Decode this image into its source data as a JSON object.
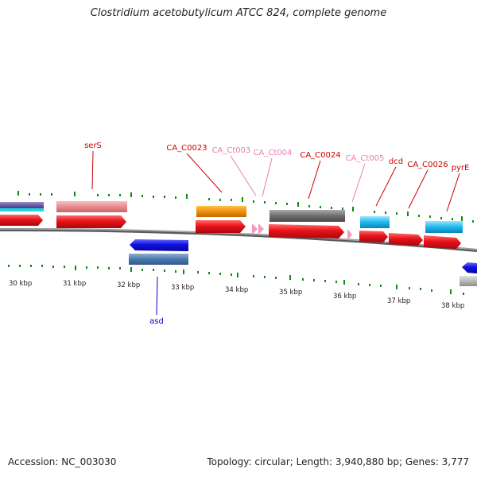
{
  "title": "Clostridium acetobutylicum ATCC 824, complete genome",
  "footer": {
    "accession": "Accession: NC_003030",
    "summary": "Topology: circular; Length: 3,940,880 bp; Genes: 3,777"
  },
  "colors": {
    "cds_red": "#e8121a",
    "rna_pink": "#f49ac1",
    "backbone": "#888888",
    "ticks": "#118811",
    "label_red": "#cc0000",
    "label_pink": "#e87fb0",
    "label_blue": "#0000cc"
  },
  "kbp_labels": [
    "30 kbp",
    "31 kbp",
    "32 kbp",
    "33 kbp",
    "34 kbp",
    "35 kbp",
    "36 kbp",
    "37 kbp",
    "38 kbp"
  ],
  "gene_labels": [
    {
      "text": "serS",
      "color": "#cc0000"
    },
    {
      "text": "CA_C0023",
      "color": "#cc0000"
    },
    {
      "text": "CA_Ct003",
      "color": "#e87fb0"
    },
    {
      "text": "CA_Ct004",
      "color": "#e87fb0"
    },
    {
      "text": "CA_C0024",
      "color": "#cc0000"
    },
    {
      "text": "CA_Ct005",
      "color": "#e87fb0"
    },
    {
      "text": "dcd",
      "color": "#cc0000"
    },
    {
      "text": "CA_C0026",
      "color": "#cc0000"
    },
    {
      "text": "pyrE",
      "color": "#cc0000"
    },
    {
      "text": "asd",
      "color": "#0000cc"
    }
  ]
}
